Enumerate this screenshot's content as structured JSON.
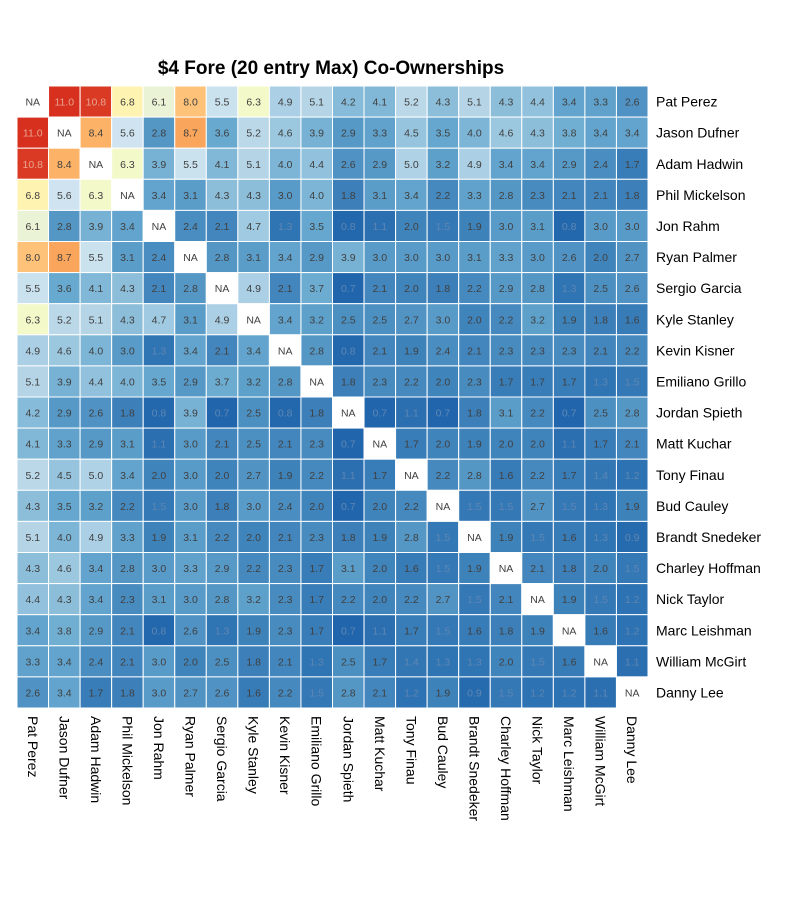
{
  "chart_data": {
    "type": "heatmap",
    "title": "$4 Fore (20 entry Max) Co-Ownerships",
    "players": [
      "Pat Perez",
      "Jason Dufner",
      "Adam Hadwin",
      "Phil Mickelson",
      "Jon Rahm",
      "Ryan Palmer",
      "Sergio Garcia",
      "Kyle Stanley",
      "Kevin Kisner",
      "Emiliano Grillo",
      "Jordan Spieth",
      "Matt Kuchar",
      "Tony Finau",
      "Bud Cauley",
      "Brandt Snedeker",
      "Charley Hoffman",
      "Nick Taylor",
      "Marc Leishman",
      "William McGirt",
      "Danny Lee"
    ],
    "na_label": "NA",
    "color_scale": {
      "low": "#2166ac",
      "mid": "#ffffbf",
      "high": "#d7301f",
      "min": 0.7,
      "mid_value": 6.5,
      "max": 11.0
    },
    "matrix": [
      [
        null,
        11.0,
        10.8,
        6.8,
        6.1,
        8.0,
        5.5,
        6.3,
        4.9,
        5.1,
        4.2,
        4.1,
        5.2,
        4.3,
        5.1,
        4.3,
        4.4,
        3.4,
        3.3,
        2.6
      ],
      [
        11.0,
        null,
        8.4,
        5.6,
        2.8,
        8.7,
        3.6,
        5.2,
        4.6,
        3.9,
        2.9,
        3.3,
        4.5,
        3.5,
        4.0,
        4.6,
        4.3,
        3.8,
        3.4,
        3.4
      ],
      [
        10.8,
        8.4,
        null,
        6.3,
        3.9,
        5.5,
        4.1,
        5.1,
        4.0,
        4.4,
        2.6,
        2.9,
        5.0,
        3.2,
        4.9,
        3.4,
        3.4,
        2.9,
        2.4,
        1.7
      ],
      [
        6.8,
        5.6,
        6.3,
        null,
        3.4,
        3.1,
        4.3,
        4.3,
        3.0,
        4.0,
        1.8,
        3.1,
        3.4,
        2.2,
        3.3,
        2.8,
        2.3,
        2.1,
        2.1,
        1.8
      ],
      [
        6.1,
        2.8,
        3.9,
        3.4,
        null,
        2.4,
        2.1,
        4.7,
        1.3,
        3.5,
        0.8,
        1.1,
        2.0,
        1.5,
        1.9,
        3.0,
        3.1,
        0.8,
        3.0,
        3.0
      ],
      [
        8.0,
        8.7,
        5.5,
        3.1,
        2.4,
        null,
        2.8,
        3.1,
        3.4,
        2.9,
        3.9,
        3.0,
        3.0,
        3.0,
        3.1,
        3.3,
        3.0,
        2.6,
        2.0,
        2.7
      ],
      [
        5.5,
        3.6,
        4.1,
        4.3,
        2.1,
        2.8,
        null,
        4.9,
        2.1,
        3.7,
        0.7,
        2.1,
        2.0,
        1.8,
        2.2,
        2.9,
        2.8,
        1.3,
        2.5,
        2.6
      ],
      [
        6.3,
        5.2,
        5.1,
        4.3,
        4.7,
        3.1,
        4.9,
        null,
        3.4,
        3.2,
        2.5,
        2.5,
        2.7,
        3.0,
        2.0,
        2.2,
        3.2,
        1.9,
        1.8,
        1.6
      ],
      [
        4.9,
        4.6,
        4.0,
        3.0,
        1.3,
        3.4,
        2.1,
        3.4,
        null,
        2.8,
        0.8,
        2.1,
        1.9,
        2.4,
        2.1,
        2.3,
        2.3,
        2.3,
        2.1,
        2.2
      ],
      [
        5.1,
        3.9,
        4.4,
        4.0,
        3.5,
        2.9,
        3.7,
        3.2,
        2.8,
        null,
        1.8,
        2.3,
        2.2,
        2.0,
        2.3,
        1.7,
        1.7,
        1.7,
        1.3,
        1.5
      ],
      [
        4.2,
        2.9,
        2.6,
        1.8,
        0.8,
        3.9,
        0.7,
        2.5,
        0.8,
        1.8,
        null,
        0.7,
        1.1,
        0.7,
        1.8,
        3.1,
        2.2,
        0.7,
        2.5,
        2.8
      ],
      [
        4.1,
        3.3,
        2.9,
        3.1,
        1.1,
        3.0,
        2.1,
        2.5,
        2.1,
        2.3,
        0.7,
        null,
        1.7,
        2.0,
        1.9,
        2.0,
        2.0,
        1.1,
        1.7,
        2.1
      ],
      [
        5.2,
        4.5,
        5.0,
        3.4,
        2.0,
        3.0,
        2.0,
        2.7,
        1.9,
        2.2,
        1.1,
        1.7,
        null,
        2.2,
        2.8,
        1.6,
        2.2,
        1.7,
        1.4,
        1.2
      ],
      [
        4.3,
        3.5,
        3.2,
        2.2,
        1.5,
        3.0,
        1.8,
        3.0,
        2.4,
        2.0,
        0.7,
        2.0,
        2.2,
        null,
        1.5,
        1.5,
        2.7,
        1.5,
        1.3,
        1.9
      ],
      [
        5.1,
        4.0,
        4.9,
        3.3,
        1.9,
        3.1,
        2.2,
        2.0,
        2.1,
        2.3,
        1.8,
        1.9,
        2.8,
        1.5,
        null,
        1.9,
        1.5,
        1.6,
        1.3,
        0.9
      ],
      [
        4.3,
        4.6,
        3.4,
        2.8,
        3.0,
        3.3,
        2.9,
        2.2,
        2.3,
        1.7,
        3.1,
        2.0,
        1.6,
        1.5,
        1.9,
        null,
        2.1,
        1.8,
        2.0,
        1.5
      ],
      [
        4.4,
        4.3,
        3.4,
        2.3,
        3.1,
        3.0,
        2.8,
        3.2,
        2.3,
        1.7,
        2.2,
        2.0,
        2.2,
        2.7,
        1.5,
        2.1,
        null,
        1.9,
        1.5,
        1.2
      ],
      [
        3.4,
        3.8,
        2.9,
        2.1,
        0.8,
        2.6,
        1.3,
        1.9,
        2.3,
        1.7,
        0.7,
        1.1,
        1.7,
        1.5,
        1.6,
        1.8,
        1.9,
        null,
        1.6,
        1.2
      ],
      [
        3.3,
        3.4,
        2.4,
        2.1,
        3.0,
        2.0,
        2.5,
        1.8,
        2.1,
        1.3,
        2.5,
        1.7,
        1.4,
        1.3,
        1.3,
        2.0,
        1.5,
        1.6,
        null,
        1.1
      ],
      [
        2.6,
        3.4,
        1.7,
        1.8,
        3.0,
        2.7,
        2.6,
        1.6,
        2.2,
        1.5,
        2.8,
        2.1,
        1.2,
        1.9,
        0.9,
        1.5,
        1.2,
        1.2,
        1.1,
        null
      ]
    ]
  }
}
